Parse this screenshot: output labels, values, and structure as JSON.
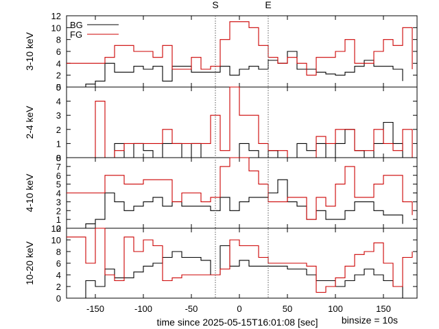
{
  "chart_data": {
    "type": "line",
    "line_shape": "step",
    "x_axis": {
      "label": "time since 2025-05-15T16:01:08 [sec]",
      "range": [
        -180,
        185
      ],
      "ticks": [
        -150,
        -100,
        -50,
        0,
        50,
        100,
        150
      ]
    },
    "binsize_label": "binsize = 10s",
    "markers": [
      {
        "label": "S",
        "x": -25
      },
      {
        "label": "E",
        "x": 30
      }
    ],
    "legend": {
      "placement": "top-left",
      "entries": [
        {
          "name": "BG",
          "color": "#000000"
        },
        {
          "name": "FG",
          "color": "#cc0000"
        }
      ]
    },
    "colors": {
      "BG": "#000000",
      "FG": "#cc0000",
      "markers": "#555555"
    },
    "panels": [
      {
        "ylabel": "3-10 keV",
        "ylim": [
          0,
          12
        ],
        "yticks": [
          0,
          2,
          4,
          6,
          8,
          10,
          12
        ],
        "series": [
          {
            "name": "BG",
            "x": [
              -170,
              -160,
              -150,
              -140,
              -130,
              -120,
              -110,
              -100,
              -90,
              -80,
              -70,
              -60,
              -50,
              -40,
              -30,
              -20,
              -10,
              0,
              10,
              20,
              30,
              40,
              50,
              60,
              70,
              80,
              90,
              100,
              110,
              120,
              130,
              140,
              150,
              160,
              170
            ],
            "y": [
              0,
              0.5,
              1,
              4,
              2.5,
              2.5,
              3.5,
              3,
              3.5,
              1,
              3.5,
              3.5,
              2.5,
              2.5,
              2.5,
              3.5,
              2,
              3,
              3.5,
              3,
              4.5,
              4,
              6,
              3,
              3,
              2.5,
              2.2,
              2,
              2.5,
              3.5,
              4.5,
              3.5,
              3.5,
              3,
              1
            ]
          },
          {
            "name": "FG",
            "x": [
              -180,
              -170,
              -160,
              -150,
              -140,
              -130,
              -120,
              -110,
              -100,
              -90,
              -80,
              -70,
              -60,
              -50,
              -40,
              -30,
              -20,
              -10,
              0,
              10,
              20,
              30,
              40,
              50,
              60,
              70,
              80,
              90,
              100,
              110,
              120,
              130,
              140,
              150,
              160,
              170,
              180
            ],
            "y": [
              4,
              4,
              4,
              4,
              5,
              7,
              7,
              6,
              6,
              5,
              7,
              3,
              3,
              5,
              3,
              3.5,
              8,
              11,
              11,
              10,
              7,
              5,
              4,
              5,
              4,
              2,
              5,
              5,
              6,
              8,
              4,
              4,
              6,
              8,
              7,
              10,
              3
            ]
          }
        ]
      },
      {
        "ylabel": "2-4 keV",
        "ylim": [
          0,
          5
        ],
        "yticks": [
          0,
          1,
          2,
          3,
          4,
          5
        ],
        "series": [
          {
            "name": "BG",
            "x": [
              -160,
              -150,
              -140,
              -130,
              -120,
              -110,
              -100,
              -90,
              -80,
              -70,
              -60,
              -50,
              -40,
              -30,
              -20,
              -10,
              0,
              10,
              20,
              30,
              40,
              50,
              60,
              70,
              80,
              90,
              100,
              110,
              120,
              130,
              140,
              150,
              160,
              170
            ],
            "y": [
              0,
              0,
              0,
              1,
              0,
              1,
              0.5,
              0,
              1,
              1,
              0,
              1,
              0,
              0,
              0,
              0,
              1,
              0.5,
              0,
              0.5,
              0,
              0,
              1,
              0.5,
              1,
              0,
              1,
              2,
              0.5,
              0,
              1,
              2.5,
              1,
              0
            ]
          },
          {
            "name": "FG",
            "x": [
              -160,
              -150,
              -140,
              -130,
              -120,
              -110,
              -100,
              -90,
              -80,
              -70,
              -60,
              -50,
              -40,
              -30,
              -20,
              -10,
              0,
              10,
              20,
              30,
              40,
              50,
              60,
              70,
              80,
              90,
              100,
              110,
              120,
              130,
              140,
              150,
              160,
              170,
              180
            ],
            "y": [
              0,
              4,
              0,
              0.5,
              1,
              1,
              1,
              1,
              2,
              1,
              1,
              1,
              1,
              3,
              0.5,
              5,
              3,
              3,
              1,
              0.5,
              0.5,
              0,
              0,
              0,
              1.5,
              1,
              2,
              2,
              0.5,
              0.5,
              2,
              1,
              0.5,
              2,
              0
            ]
          }
        ]
      },
      {
        "ylabel": "4-10 keV",
        "ylim": [
          0,
          8
        ],
        "yticks": [
          0,
          1,
          2,
          3,
          4,
          5,
          6,
          7,
          8
        ],
        "series": [
          {
            "name": "BG",
            "x": [
              -170,
              -160,
              -150,
              -140,
              -130,
              -120,
              -110,
              -100,
              -90,
              -80,
              -70,
              -60,
              -50,
              -40,
              -30,
              -20,
              -10,
              0,
              10,
              20,
              30,
              40,
              50,
              60,
              70,
              80,
              90,
              100,
              110,
              120,
              130,
              140,
              150,
              160,
              170
            ],
            "y": [
              0,
              0.5,
              1,
              4,
              3,
              2,
              2.5,
              3,
              3.5,
              2.5,
              3,
              2.5,
              2.5,
              2.5,
              2,
              3.5,
              2,
              3,
              3.5,
              3.5,
              4,
              5.5,
              3,
              2.5,
              1,
              2,
              1,
              1,
              2,
              3,
              3,
              2,
              1.5,
              1.5,
              0.5
            ]
          },
          {
            "name": "FG",
            "x": [
              -180,
              -170,
              -160,
              -150,
              -140,
              -130,
              -120,
              -110,
              -100,
              -90,
              -80,
              -70,
              -60,
              -50,
              -40,
              -30,
              -20,
              -10,
              0,
              10,
              20,
              30,
              40,
              50,
              60,
              70,
              80,
              90,
              100,
              110,
              120,
              130,
              140,
              150,
              160,
              170,
              180
            ],
            "y": [
              4,
              4,
              4,
              4,
              6,
              6,
              5,
              5,
              5.5,
              5.5,
              5.5,
              3,
              4,
              4,
              3,
              3.5,
              7,
              8,
              8,
              6.5,
              5,
              3,
              3,
              3.5,
              3.5,
              1,
              3.5,
              2.5,
              5,
              7,
              3.5,
              3.5,
              5,
              6,
              6,
              3,
              1.5
            ]
          }
        ]
      },
      {
        "ylabel": "10-20 keV",
        "ylim": [
          0,
          12
        ],
        "yticks": [
          0,
          2,
          4,
          6,
          8,
          10,
          12
        ],
        "series": [
          {
            "name": "BG",
            "x": [
              -170,
              -160,
              -150,
              -140,
              -130,
              -120,
              -110,
              -100,
              -90,
              -80,
              -70,
              -60,
              -50,
              -40,
              -30,
              -20,
              -10,
              0,
              10,
              20,
              30,
              40,
              50,
              60,
              70,
              80,
              90,
              100,
              110,
              120,
              130,
              140,
              150,
              160,
              170
            ],
            "y": [
              0,
              3,
              2,
              5,
              3.5,
              3.5,
              4.5,
              5.5,
              6,
              7,
              8,
              7,
              7,
              6.5,
              4,
              9,
              5.5,
              6.5,
              5.5,
              5.5,
              5.5,
              5.5,
              5,
              5,
              4,
              3,
              3,
              2,
              3,
              4,
              5,
              4,
              3,
              2,
              0
            ]
          },
          {
            "name": "FG",
            "x": [
              -180,
              -170,
              -160,
              -150,
              -140,
              -130,
              -120,
              -110,
              -100,
              -90,
              -80,
              -70,
              -60,
              -50,
              -40,
              -30,
              -20,
              -10,
              0,
              10,
              20,
              30,
              40,
              50,
              60,
              70,
              80,
              90,
              100,
              110,
              120,
              130,
              140,
              150,
              160,
              170,
              180
            ],
            "y": [
              10.5,
              10.5,
              6,
              12,
              4,
              3,
              10.5,
              8,
              10,
              9,
              3,
              3.5,
              4,
              4,
              4,
              4,
              5,
              10,
              9,
              9,
              7,
              6,
              6,
              6,
              6,
              5.5,
              1,
              2,
              3.5,
              5.5,
              7.5,
              8,
              9.5,
              6,
              2,
              7,
              8
            ]
          }
        ]
      }
    ]
  }
}
